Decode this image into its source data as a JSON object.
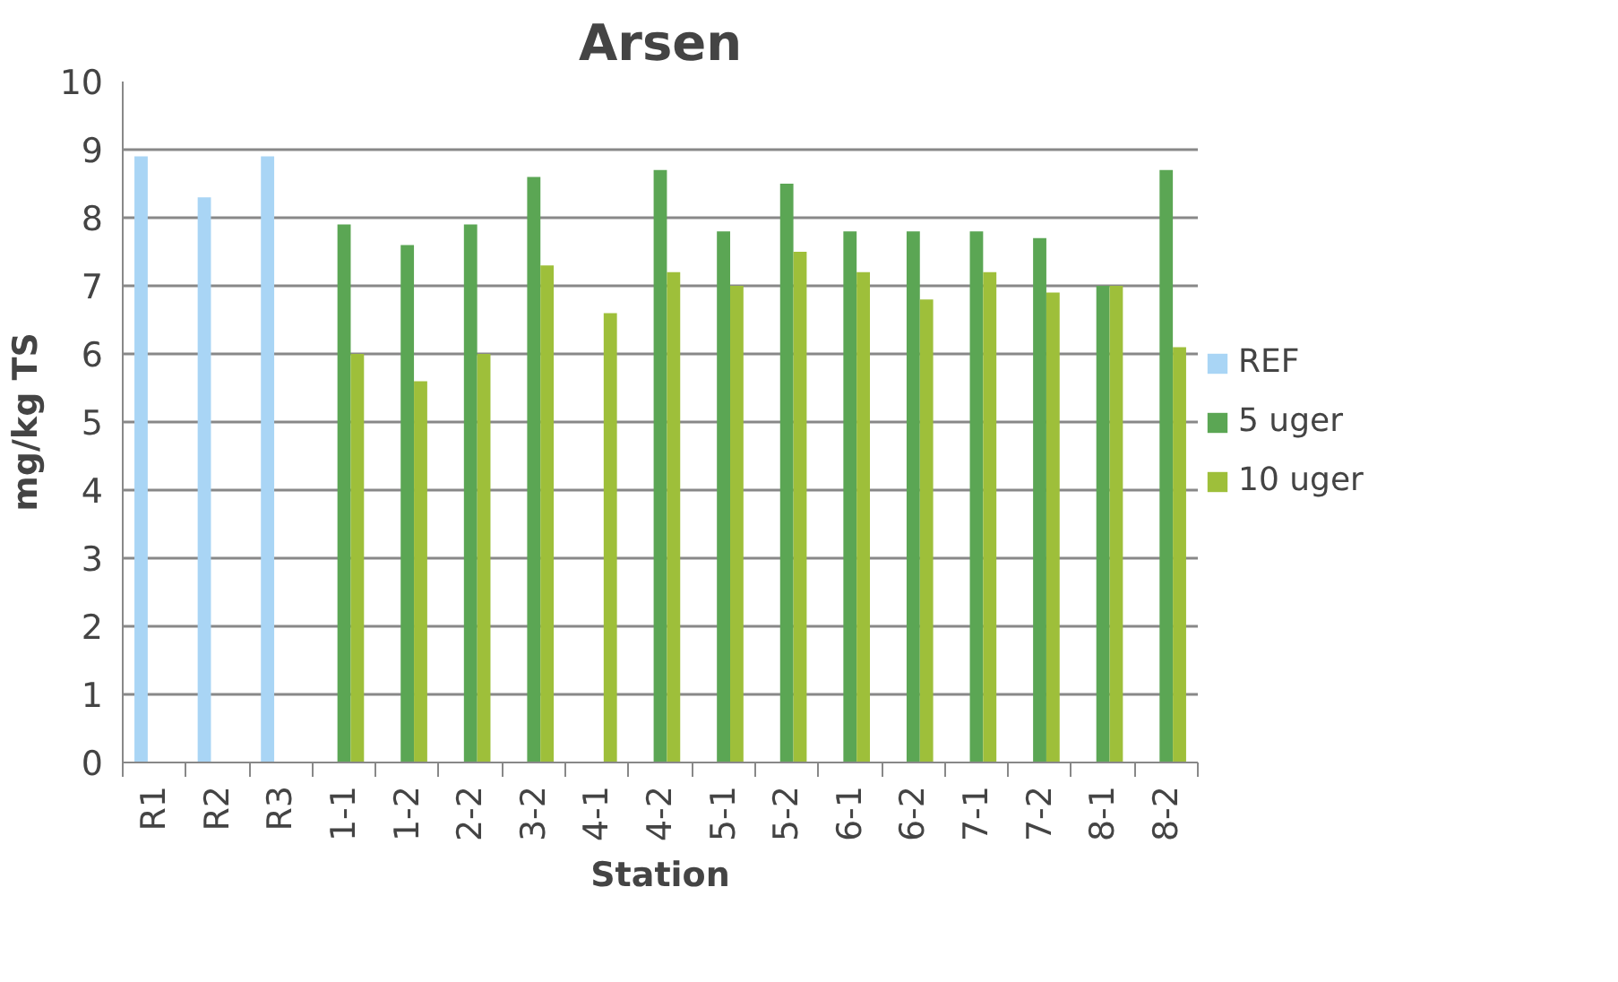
{
  "chart_data": {
    "type": "bar",
    "title": "Arsen",
    "xlabel": "Station",
    "ylabel": "mg/kg TS",
    "categories": [
      "R1",
      "R2",
      "R3",
      "1-1",
      "1-2",
      "2-2",
      "3-2",
      "4-1",
      "4-2",
      "5-1",
      "5-2",
      "6-1",
      "6-2",
      "7-1",
      "7-2",
      "8-1",
      "8-2"
    ],
    "series": [
      {
        "name": "REF",
        "color": "#a9d5f5",
        "values": [
          8.9,
          8.3,
          8.9,
          null,
          null,
          null,
          null,
          null,
          null,
          null,
          null,
          null,
          null,
          null,
          null,
          null,
          null
        ]
      },
      {
        "name": "5 uger",
        "color": "#5ba654",
        "values": [
          null,
          null,
          null,
          7.9,
          7.6,
          7.9,
          8.6,
          null,
          8.7,
          7.8,
          8.5,
          7.8,
          7.8,
          7.8,
          7.7,
          7.0,
          8.7
        ]
      },
      {
        "name": "10 uger",
        "color": "#9ebf3a",
        "values": [
          null,
          null,
          null,
          6.0,
          5.6,
          6.0,
          7.3,
          6.6,
          7.2,
          7.0,
          7.5,
          7.2,
          6.8,
          7.2,
          6.9,
          7.0,
          6.1
        ]
      }
    ],
    "ylim": [
      0,
      10
    ],
    "yticks": [
      0,
      1,
      2,
      3,
      4,
      5,
      6,
      7,
      8,
      9,
      10
    ],
    "grid": "y",
    "legend": "right"
  }
}
